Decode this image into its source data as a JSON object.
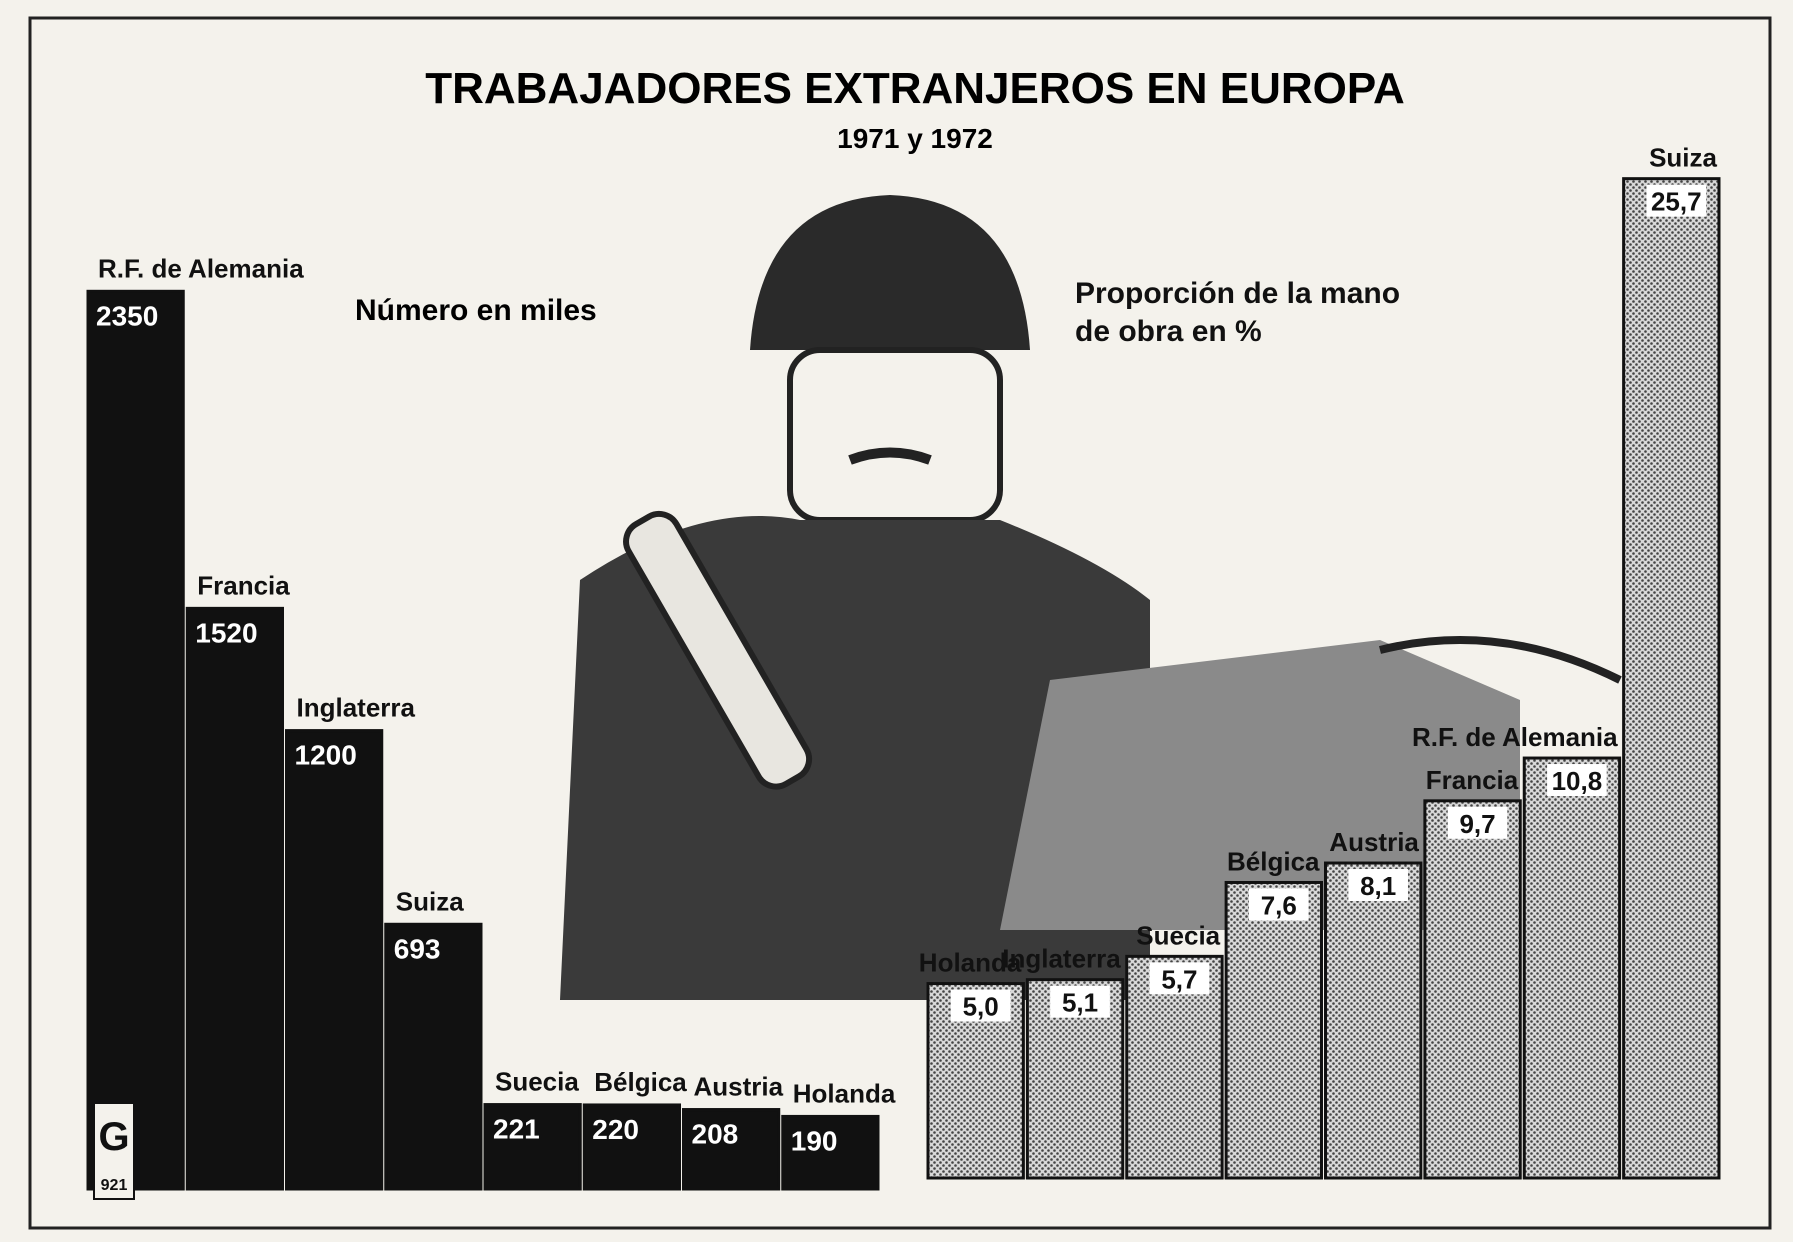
{
  "header": {
    "title": "TRABAJADORES EXTRANJEROS EN EUROPA",
    "subtitle": "1971 y 1972"
  },
  "logo": {
    "letter": "G",
    "code": "921"
  },
  "chart_data": [
    {
      "type": "bar",
      "title": "Número en miles",
      "categories": [
        "R.F. de Alemania",
        "Francia",
        "Inglaterra",
        "Suiza",
        "Suecia",
        "Bélgica",
        "Austria",
        "Holanda"
      ],
      "values": [
        2350,
        1520,
        1200,
        693,
        221,
        220,
        208,
        190
      ],
      "color": "#111111",
      "ylim": [
        0,
        2500
      ]
    },
    {
      "type": "bar",
      "title": "Proporción de la mano de obra en %",
      "categories": [
        "Holanda",
        "Inglaterra",
        "Suecia",
        "Bélgica",
        "Austria",
        "Francia",
        "R.F. de Alemania",
        "Suiza"
      ],
      "values": [
        5.0,
        5.1,
        5.7,
        7.6,
        8.1,
        9.7,
        10.8,
        25.7
      ],
      "value_labels": [
        "5,0",
        "5,1",
        "5,7",
        "7,6",
        "8,1",
        "9,7",
        "10,8",
        "25,7"
      ],
      "color": "#9a9a9a",
      "ylim": [
        0,
        26
      ]
    }
  ]
}
